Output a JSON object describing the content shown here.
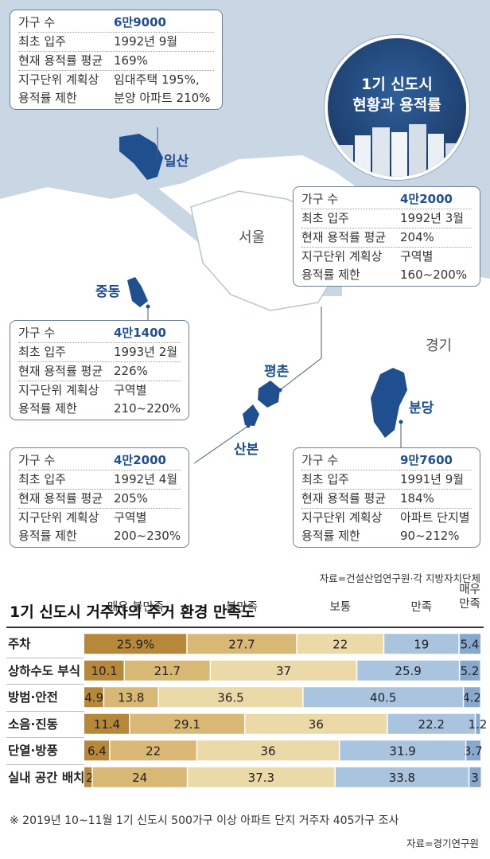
{
  "map": {
    "title_line1": "1기 신도시",
    "title_line2": "현황과 용적률",
    "region_seoul": "서울",
    "region_gyeonggi": "경기",
    "source": "자료=건설산업연구원·각 지방자치단체",
    "colors": {
      "water": "#c9d6e3",
      "land": "#ffffff",
      "city": "#1f4f8f",
      "box_border": "#6d7f94"
    },
    "cities": [
      {
        "name": "일산",
        "households_label": "가구 수",
        "households": "6만9000",
        "first_move_label": "최초 입주",
        "first_move": "1992년 9월",
        "avg_label": "현재 용적률 평균",
        "avg": "169%",
        "limit_label": "지구단위 계획상\n용적률 제한",
        "limit": "임대주택 195%,\n분양 아파트 210%"
      },
      {
        "name": "중동",
        "households_label": "가구 수",
        "households": "4만1400",
        "first_move_label": "최초 입주",
        "first_move": "1993년 2월",
        "avg_label": "현재 용적률 평균",
        "avg": "226%",
        "limit_label": "지구단위 계획상\n용적률 제한",
        "limit": "구역별\n210~220%"
      },
      {
        "name": "평촌",
        "households_label": "가구 수",
        "households": "4만2000",
        "first_move_label": "최초 입주",
        "first_move": "1992년 3월",
        "avg_label": "현재 용적률 평균",
        "avg": "204%",
        "limit_label": "지구단위 계획상\n용적률 제한",
        "limit": "구역별\n160~200%"
      },
      {
        "name": "산본",
        "households_label": "가구 수",
        "households": "4만2000",
        "first_move_label": "최초 입주",
        "first_move": "1992년 4월",
        "avg_label": "현재 용적률 평균",
        "avg": "205%",
        "limit_label": "지구단위 계획상\n용적률 제한",
        "limit": "구역별\n200~230%"
      },
      {
        "name": "분당",
        "households_label": "가구 수",
        "households": "9만7600",
        "first_move_label": "최초 입주",
        "first_move": "1991년 9월",
        "avg_label": "현재 용적률 평균",
        "avg": "184%",
        "limit_label": "지구단위 계획상\n용적률 제한",
        "limit": "아파트 단지별\n90~212%"
      }
    ]
  },
  "chart_data": {
    "type": "bar",
    "stacked": true,
    "orientation": "horizontal",
    "title": "1기 신도시 거주자의 주거 환경 만족도",
    "categories": [
      "주차",
      "상하수도 부식",
      "방범·안전",
      "소음·진동",
      "단열·방풍",
      "실내 공간 배치"
    ],
    "series": [
      {
        "name": "매우 불만족",
        "color": "#b8883a",
        "values": [
          25.9,
          10.1,
          4.9,
          11.4,
          6.4,
          2
        ]
      },
      {
        "name": "불만족",
        "color": "#d9b775",
        "values": [
          27.7,
          21.7,
          13.8,
          29.1,
          22,
          24
        ]
      },
      {
        "name": "보통",
        "color": "#ecd9a8",
        "values": [
          22,
          37,
          36.5,
          36,
          36,
          37.3
        ]
      },
      {
        "name": "만족",
        "color": "#a9c4de",
        "values": [
          19,
          25.9,
          40.5,
          22.2,
          31.9,
          33.8
        ]
      },
      {
        "name": "매우\n만족",
        "color": "#86a9cd",
        "values": [
          5.4,
          5.2,
          4.2,
          1.2,
          3.7,
          3
        ]
      }
    ],
    "value_labels": [
      [
        "25.9%",
        "27.7",
        "22",
        "19",
        "5.4"
      ],
      [
        "10.1",
        "21.7",
        "37",
        "25.9",
        "5.2"
      ],
      [
        "4.9",
        "13.8",
        "36.5",
        "40.5",
        "4.2"
      ],
      [
        "11.4",
        "29.1",
        "36",
        "22.2",
        "1.2"
      ],
      [
        "6.4",
        "22",
        "36",
        "31.9",
        "3.7"
      ],
      [
        "2",
        "24",
        "37.3",
        "33.8",
        "3"
      ]
    ],
    "unit": "%",
    "xlim": [
      0,
      100
    ],
    "legend": "top",
    "footnote": "※ 2019년 10~11월 1기 신도시 500가구 이상 아파트 단지 거주자 405가구 조사",
    "source": "자료=경기연구원"
  }
}
